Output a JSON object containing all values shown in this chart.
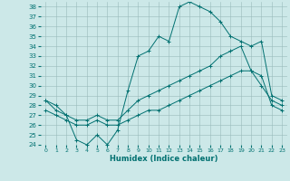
{
  "xlabel": "Humidex (Indice chaleur)",
  "bg_color": "#cce8e8",
  "grid_color": "#99bbbb",
  "line_color": "#007070",
  "xlim": [
    -0.5,
    23.5
  ],
  "ylim": [
    24,
    38.5
  ],
  "yticks": [
    24,
    25,
    26,
    27,
    28,
    29,
    30,
    31,
    32,
    33,
    34,
    35,
    36,
    37,
    38
  ],
  "xticks": [
    0,
    1,
    2,
    3,
    4,
    5,
    6,
    7,
    8,
    9,
    10,
    11,
    12,
    13,
    14,
    15,
    16,
    17,
    18,
    19,
    20,
    21,
    22,
    23
  ],
  "series": [
    {
      "x": [
        0,
        1,
        2,
        3,
        4,
        5,
        6,
        7,
        8,
        9,
        10,
        11,
        12,
        13,
        14,
        15,
        16,
        17,
        18,
        19,
        20,
        21,
        22,
        23
      ],
      "y": [
        28.5,
        28.0,
        27.0,
        24.5,
        24.0,
        25.0,
        24.0,
        25.5,
        29.5,
        33.0,
        33.5,
        35.0,
        34.5,
        38.0,
        38.5,
        38.0,
        37.5,
        36.5,
        35.0,
        34.5,
        34.0,
        34.5,
        29.0,
        28.5
      ]
    },
    {
      "x": [
        0,
        1,
        2,
        3,
        4,
        5,
        6,
        7,
        8,
        9,
        10,
        11,
        12,
        13,
        14,
        15,
        16,
        17,
        18,
        19,
        20,
        21,
        22,
        23
      ],
      "y": [
        28.5,
        27.5,
        27.0,
        26.5,
        26.5,
        27.0,
        26.5,
        26.5,
        27.5,
        28.5,
        29.0,
        29.5,
        30.0,
        30.5,
        31.0,
        31.5,
        32.0,
        33.0,
        33.5,
        34.0,
        31.5,
        30.0,
        28.5,
        28.0
      ]
    },
    {
      "x": [
        0,
        1,
        2,
        3,
        4,
        5,
        6,
        7,
        8,
        9,
        10,
        11,
        12,
        13,
        14,
        15,
        16,
        17,
        18,
        19,
        20,
        21,
        22,
        23
      ],
      "y": [
        27.5,
        27.0,
        26.5,
        26.0,
        26.0,
        26.5,
        26.0,
        26.0,
        26.5,
        27.0,
        27.5,
        27.5,
        28.0,
        28.5,
        29.0,
        29.5,
        30.0,
        30.5,
        31.0,
        31.5,
        31.5,
        31.0,
        28.0,
        27.5
      ]
    }
  ]
}
